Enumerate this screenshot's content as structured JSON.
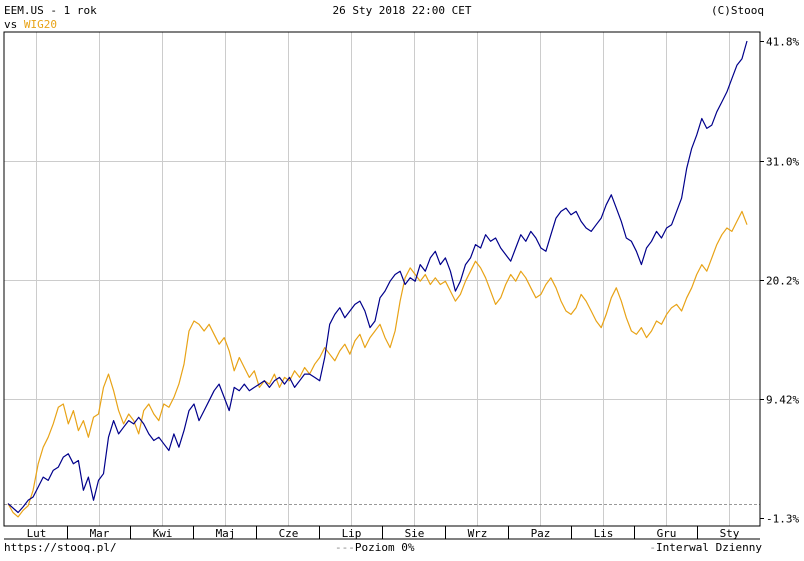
{
  "header": {
    "title": "EEM.US - 1 rok",
    "vs_label": "vs",
    "compare_symbol": "WIG20",
    "datetime": "26 Sty 2018 22:00 CET",
    "copyright": "(C)Stooq"
  },
  "footer": {
    "url": "https://stooq.pl/",
    "zero_legend": "Poziom 0%",
    "interval": "Interwal Dzienny"
  },
  "chart_data": {
    "type": "line",
    "y_unit": "%",
    "ylim": [
      -1.3,
      41.8
    ],
    "yticks": [
      41.8,
      31.0,
      20.2,
      9.42,
      -1.3
    ],
    "ytick_labels": [
      "41.8%",
      "31.0%",
      "20.2%",
      "9.42%",
      "-1.3%"
    ],
    "zero_line": 0,
    "grid": true,
    "months": [
      "Lut",
      "Mar",
      "Kwi",
      "Maj",
      "Cze",
      "Lip",
      "Sie",
      "Wrz",
      "Paz",
      "Lis",
      "Gru",
      "Sty"
    ],
    "series": [
      {
        "name": "EEM.US",
        "color": "#00008b",
        "points": [
          [
            0.0,
            0.0
          ],
          [
            0.1,
            -0.4
          ],
          [
            0.2,
            -0.8
          ],
          [
            0.3,
            -0.3
          ],
          [
            0.4,
            0.3
          ],
          [
            0.5,
            0.6
          ],
          [
            0.6,
            1.5
          ],
          [
            0.7,
            2.4
          ],
          [
            0.8,
            2.1
          ],
          [
            0.9,
            3.0
          ],
          [
            1.0,
            3.3
          ],
          [
            1.1,
            4.2
          ],
          [
            1.2,
            4.5
          ],
          [
            1.3,
            3.6
          ],
          [
            1.4,
            3.9
          ],
          [
            1.5,
            1.2
          ],
          [
            1.6,
            2.4
          ],
          [
            1.7,
            0.3
          ],
          [
            1.8,
            2.1
          ],
          [
            1.9,
            2.7
          ],
          [
            2.0,
            6.0
          ],
          [
            2.1,
            7.5
          ],
          [
            2.2,
            6.3
          ],
          [
            2.3,
            6.9
          ],
          [
            2.4,
            7.5
          ],
          [
            2.5,
            7.2
          ],
          [
            2.6,
            7.8
          ],
          [
            2.7,
            7.2
          ],
          [
            2.8,
            6.3
          ],
          [
            2.9,
            5.7
          ],
          [
            3.0,
            6.0
          ],
          [
            3.1,
            5.4
          ],
          [
            3.2,
            4.8
          ],
          [
            3.3,
            6.3
          ],
          [
            3.4,
            5.1
          ],
          [
            3.5,
            6.6
          ],
          [
            3.6,
            8.4
          ],
          [
            3.7,
            9.0
          ],
          [
            3.8,
            7.5
          ],
          [
            3.9,
            8.4
          ],
          [
            4.0,
            9.3
          ],
          [
            4.1,
            10.2
          ],
          [
            4.2,
            10.8
          ],
          [
            4.3,
            9.6
          ],
          [
            4.4,
            8.4
          ],
          [
            4.5,
            10.5
          ],
          [
            4.6,
            10.2
          ],
          [
            4.7,
            10.8
          ],
          [
            4.8,
            10.2
          ],
          [
            4.9,
            10.5
          ],
          [
            5.0,
            10.8
          ],
          [
            5.1,
            11.1
          ],
          [
            5.2,
            10.5
          ],
          [
            5.3,
            11.1
          ],
          [
            5.4,
            11.4
          ],
          [
            5.5,
            10.8
          ],
          [
            5.6,
            11.4
          ],
          [
            5.7,
            10.5
          ],
          [
            5.8,
            11.1
          ],
          [
            5.9,
            11.7
          ],
          [
            6.0,
            11.7
          ],
          [
            6.1,
            11.4
          ],
          [
            6.2,
            11.1
          ],
          [
            6.3,
            13.2
          ],
          [
            6.4,
            16.2
          ],
          [
            6.5,
            17.1
          ],
          [
            6.6,
            17.7
          ],
          [
            6.7,
            16.8
          ],
          [
            6.8,
            17.4
          ],
          [
            6.9,
            18.0
          ],
          [
            7.0,
            18.3
          ],
          [
            7.1,
            17.4
          ],
          [
            7.2,
            15.9
          ],
          [
            7.3,
            16.5
          ],
          [
            7.4,
            18.6
          ],
          [
            7.5,
            19.2
          ],
          [
            7.6,
            20.1
          ],
          [
            7.7,
            20.7
          ],
          [
            7.8,
            21.0
          ],
          [
            7.9,
            19.8
          ],
          [
            8.0,
            20.4
          ],
          [
            8.1,
            20.1
          ],
          [
            8.2,
            21.6
          ],
          [
            8.3,
            21.0
          ],
          [
            8.4,
            22.2
          ],
          [
            8.5,
            22.8
          ],
          [
            8.6,
            21.6
          ],
          [
            8.7,
            22.2
          ],
          [
            8.8,
            21.0
          ],
          [
            8.9,
            19.2
          ],
          [
            9.0,
            20.1
          ],
          [
            9.1,
            21.6
          ],
          [
            9.2,
            22.2
          ],
          [
            9.3,
            23.4
          ],
          [
            9.4,
            23.1
          ],
          [
            9.5,
            24.3
          ],
          [
            9.6,
            23.7
          ],
          [
            9.7,
            24.0
          ],
          [
            9.8,
            23.1
          ],
          [
            9.9,
            22.5
          ],
          [
            10.0,
            21.9
          ],
          [
            10.1,
            23.1
          ],
          [
            10.2,
            24.3
          ],
          [
            10.3,
            23.7
          ],
          [
            10.4,
            24.6
          ],
          [
            10.5,
            24.0
          ],
          [
            10.6,
            23.1
          ],
          [
            10.7,
            22.8
          ],
          [
            10.8,
            24.3
          ],
          [
            10.9,
            25.8
          ],
          [
            11.0,
            26.4
          ],
          [
            11.1,
            26.7
          ],
          [
            11.2,
            26.1
          ],
          [
            11.3,
            26.4
          ],
          [
            11.4,
            25.5
          ],
          [
            11.5,
            24.9
          ],
          [
            11.6,
            24.6
          ],
          [
            11.7,
            25.2
          ],
          [
            11.8,
            25.8
          ],
          [
            11.9,
            27.0
          ],
          [
            12.0,
            27.9
          ],
          [
            12.1,
            26.7
          ],
          [
            12.2,
            25.5
          ],
          [
            12.3,
            24.0
          ],
          [
            12.4,
            23.7
          ],
          [
            12.5,
            22.8
          ],
          [
            12.6,
            21.6
          ],
          [
            12.7,
            23.1
          ],
          [
            12.8,
            23.7
          ],
          [
            12.9,
            24.6
          ],
          [
            13.0,
            24.0
          ],
          [
            13.1,
            24.9
          ],
          [
            13.2,
            25.2
          ],
          [
            13.3,
            26.4
          ],
          [
            13.4,
            27.6
          ],
          [
            13.5,
            30.3
          ],
          [
            13.6,
            32.1
          ],
          [
            13.7,
            33.3
          ],
          [
            13.8,
            34.8
          ],
          [
            13.9,
            33.9
          ],
          [
            14.0,
            34.2
          ],
          [
            14.1,
            35.4
          ],
          [
            14.2,
            36.3
          ],
          [
            14.3,
            37.2
          ],
          [
            14.4,
            38.4
          ],
          [
            14.5,
            39.6
          ],
          [
            14.6,
            40.2
          ],
          [
            14.7,
            41.8
          ]
        ]
      },
      {
        "name": "WIG20",
        "color": "#e8a317",
        "points": [
          [
            0.0,
            0.0
          ],
          [
            0.1,
            -0.8
          ],
          [
            0.2,
            -1.2
          ],
          [
            0.3,
            -0.6
          ],
          [
            0.4,
            -0.2
          ],
          [
            0.5,
            1.2
          ],
          [
            0.6,
            3.6
          ],
          [
            0.7,
            5.1
          ],
          [
            0.8,
            6.0
          ],
          [
            0.9,
            7.2
          ],
          [
            1.0,
            8.7
          ],
          [
            1.1,
            9.0
          ],
          [
            1.2,
            7.2
          ],
          [
            1.3,
            8.4
          ],
          [
            1.4,
            6.6
          ],
          [
            1.5,
            7.5
          ],
          [
            1.6,
            6.0
          ],
          [
            1.7,
            7.8
          ],
          [
            1.8,
            8.1
          ],
          [
            1.9,
            10.5
          ],
          [
            2.0,
            11.7
          ],
          [
            2.1,
            10.2
          ],
          [
            2.2,
            8.4
          ],
          [
            2.3,
            7.2
          ],
          [
            2.4,
            8.1
          ],
          [
            2.5,
            7.5
          ],
          [
            2.6,
            6.3
          ],
          [
            2.7,
            8.4
          ],
          [
            2.8,
            9.0
          ],
          [
            2.9,
            8.1
          ],
          [
            3.0,
            7.5
          ],
          [
            3.1,
            9.0
          ],
          [
            3.2,
            8.7
          ],
          [
            3.3,
            9.6
          ],
          [
            3.4,
            10.8
          ],
          [
            3.5,
            12.6
          ],
          [
            3.6,
            15.6
          ],
          [
            3.7,
            16.5
          ],
          [
            3.8,
            16.2
          ],
          [
            3.9,
            15.6
          ],
          [
            4.0,
            16.2
          ],
          [
            4.1,
            15.3
          ],
          [
            4.2,
            14.4
          ],
          [
            4.3,
            15.0
          ],
          [
            4.4,
            13.8
          ],
          [
            4.5,
            12.0
          ],
          [
            4.6,
            13.2
          ],
          [
            4.7,
            12.3
          ],
          [
            4.8,
            11.4
          ],
          [
            4.9,
            12.0
          ],
          [
            5.0,
            10.5
          ],
          [
            5.1,
            11.1
          ],
          [
            5.2,
            10.8
          ],
          [
            5.3,
            11.7
          ],
          [
            5.4,
            10.5
          ],
          [
            5.5,
            11.4
          ],
          [
            5.6,
            11.1
          ],
          [
            5.7,
            12.0
          ],
          [
            5.8,
            11.4
          ],
          [
            5.9,
            12.3
          ],
          [
            6.0,
            11.7
          ],
          [
            6.1,
            12.6
          ],
          [
            6.2,
            13.2
          ],
          [
            6.3,
            14.1
          ],
          [
            6.4,
            13.5
          ],
          [
            6.5,
            12.9
          ],
          [
            6.6,
            13.8
          ],
          [
            6.7,
            14.4
          ],
          [
            6.8,
            13.5
          ],
          [
            6.9,
            14.7
          ],
          [
            7.0,
            15.3
          ],
          [
            7.1,
            14.1
          ],
          [
            7.2,
            15.0
          ],
          [
            7.3,
            15.6
          ],
          [
            7.4,
            16.2
          ],
          [
            7.5,
            15.0
          ],
          [
            7.6,
            14.1
          ],
          [
            7.7,
            15.6
          ],
          [
            7.8,
            18.3
          ],
          [
            7.9,
            20.4
          ],
          [
            8.0,
            21.3
          ],
          [
            8.1,
            20.7
          ],
          [
            8.2,
            20.1
          ],
          [
            8.3,
            20.7
          ],
          [
            8.4,
            19.8
          ],
          [
            8.5,
            20.4
          ],
          [
            8.6,
            19.8
          ],
          [
            8.7,
            20.1
          ],
          [
            8.8,
            19.2
          ],
          [
            8.9,
            18.3
          ],
          [
            9.0,
            18.9
          ],
          [
            9.1,
            20.1
          ],
          [
            9.2,
            21.0
          ],
          [
            9.3,
            21.9
          ],
          [
            9.4,
            21.3
          ],
          [
            9.5,
            20.4
          ],
          [
            9.6,
            19.2
          ],
          [
            9.7,
            18.0
          ],
          [
            9.8,
            18.6
          ],
          [
            9.9,
            19.8
          ],
          [
            10.0,
            20.7
          ],
          [
            10.1,
            20.1
          ],
          [
            10.2,
            21.0
          ],
          [
            10.3,
            20.4
          ],
          [
            10.4,
            19.5
          ],
          [
            10.5,
            18.6
          ],
          [
            10.6,
            18.9
          ],
          [
            10.7,
            19.8
          ],
          [
            10.8,
            20.4
          ],
          [
            10.9,
            19.5
          ],
          [
            11.0,
            18.3
          ],
          [
            11.1,
            17.4
          ],
          [
            11.2,
            17.1
          ],
          [
            11.3,
            17.7
          ],
          [
            11.4,
            18.9
          ],
          [
            11.5,
            18.3
          ],
          [
            11.6,
            17.4
          ],
          [
            11.7,
            16.5
          ],
          [
            11.8,
            15.9
          ],
          [
            11.9,
            17.1
          ],
          [
            12.0,
            18.6
          ],
          [
            12.1,
            19.5
          ],
          [
            12.2,
            18.3
          ],
          [
            12.3,
            16.8
          ],
          [
            12.4,
            15.6
          ],
          [
            12.5,
            15.3
          ],
          [
            12.6,
            15.9
          ],
          [
            12.7,
            15.0
          ],
          [
            12.8,
            15.6
          ],
          [
            12.9,
            16.5
          ],
          [
            13.0,
            16.2
          ],
          [
            13.1,
            17.1
          ],
          [
            13.2,
            17.7
          ],
          [
            13.3,
            18.0
          ],
          [
            13.4,
            17.4
          ],
          [
            13.5,
            18.6
          ],
          [
            13.6,
            19.5
          ],
          [
            13.7,
            20.7
          ],
          [
            13.8,
            21.6
          ],
          [
            13.9,
            21.0
          ],
          [
            14.0,
            22.2
          ],
          [
            14.1,
            23.4
          ],
          [
            14.2,
            24.3
          ],
          [
            14.3,
            24.9
          ],
          [
            14.4,
            24.6
          ],
          [
            14.5,
            25.5
          ],
          [
            14.6,
            26.4
          ],
          [
            14.7,
            25.2
          ]
        ]
      }
    ]
  }
}
